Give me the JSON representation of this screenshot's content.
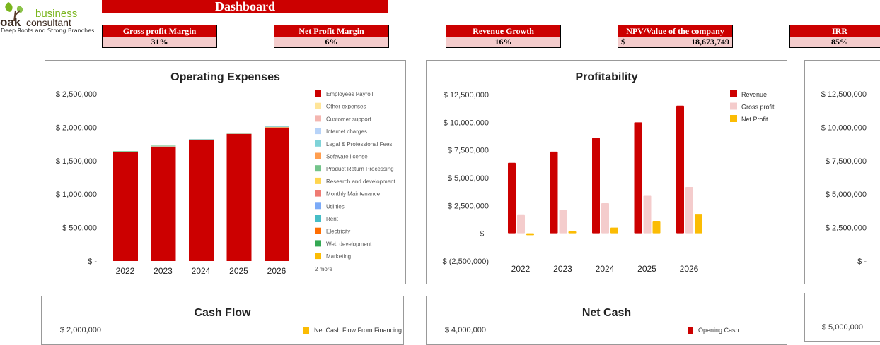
{
  "logo": {
    "brand_top": "business",
    "brand_main": "oak",
    "brand_sub": "consultant",
    "tagline": "Deep Roots and Strong Branches"
  },
  "header": {
    "title": "Dashboard"
  },
  "kpis": [
    {
      "label": "Gross profit Margin",
      "value": "31%"
    },
    {
      "label": "Net Profit Margin",
      "value": "6%"
    },
    {
      "label": "Revenue Growth",
      "value": "16%"
    },
    {
      "label": "NPV/Value of the company",
      "currency": "$",
      "value": "18,673,749"
    },
    {
      "label": "IRR",
      "value": "85%"
    }
  ],
  "colors": {
    "accent": "#cc0000",
    "kpi_value_bg": "#f4cccc"
  },
  "chart_data": [
    {
      "type": "bar",
      "stacked": true,
      "title": "Operating Expenses",
      "categories": [
        "2022",
        "2023",
        "2024",
        "2025",
        "2026"
      ],
      "ylim": [
        0,
        2500000
      ],
      "yticks": [
        "$ 2,500,000",
        "$ 2,000,000",
        "$ 1,500,000",
        "$ 1,000,000",
        "$ 500,000",
        "$ -"
      ],
      "legend_position": "right",
      "legend_more": "2 more",
      "series": [
        {
          "name": "Employees Payroll",
          "color": "#cc0000",
          "values": [
            1630000,
            1710000,
            1805000,
            1900000,
            1990000
          ]
        },
        {
          "name": "Other expenses",
          "color": "#ffe599",
          "values": [
            0,
            0,
            0,
            0,
            0
          ]
        },
        {
          "name": "Customer support",
          "color": "#f4b6b0",
          "values": [
            0,
            0,
            0,
            0,
            0
          ]
        },
        {
          "name": "Internet charges",
          "color": "#b7d3f8",
          "values": [
            0,
            0,
            0,
            0,
            0
          ]
        },
        {
          "name": "Legal & Professional Fees",
          "color": "#7fd3d8",
          "values": [
            6000,
            6000,
            6000,
            6000,
            6000
          ]
        },
        {
          "name": "Software license",
          "color": "#ff9e4f",
          "values": [
            0,
            4000,
            6000,
            8000,
            10000
          ]
        },
        {
          "name": "Product Return Processing",
          "color": "#73c48a",
          "values": [
            8000,
            6000,
            0,
            0,
            0
          ]
        },
        {
          "name": "Research and development",
          "color": "#ffd54f",
          "values": [
            0,
            0,
            0,
            0,
            0
          ]
        },
        {
          "name": "Monthly Maintenance",
          "color": "#ef7b73",
          "values": [
            0,
            0,
            0,
            0,
            0
          ]
        },
        {
          "name": "Utilities",
          "color": "#7baaf7",
          "values": [
            0,
            0,
            0,
            0,
            0
          ]
        },
        {
          "name": "Rent",
          "color": "#46bdc6",
          "values": [
            0,
            0,
            5000,
            5000,
            6000
          ]
        },
        {
          "name": "Electricity",
          "color": "#ff6d01",
          "values": [
            0,
            0,
            0,
            0,
            0
          ]
        },
        {
          "name": "Web development",
          "color": "#34a853",
          "values": [
            0,
            0,
            0,
            0,
            0
          ]
        },
        {
          "name": "Marketing",
          "color": "#fbbc04",
          "values": [
            0,
            0,
            0,
            0,
            0
          ]
        }
      ]
    },
    {
      "type": "bar",
      "title": "Profitability",
      "categories": [
        "2022",
        "2023",
        "2024",
        "2025",
        "2026"
      ],
      "ylim": [
        -2500000,
        12500000
      ],
      "yticks": [
        "$ 12,500,000",
        "$ 10,000,000",
        "$ 7,500,000",
        "$ 5,000,000",
        "$ 2,500,000",
        "$ -",
        "$ (2,500,000)"
      ],
      "legend_position": "right",
      "series": [
        {
          "name": "Revenue",
          "color": "#cc0000",
          "values": [
            6350000,
            7360000,
            8590000,
            10000000,
            11500000
          ]
        },
        {
          "name": "Gross profit",
          "color": "#f4cccc",
          "values": [
            1650000,
            2110000,
            2710000,
            3380000,
            4170000
          ]
        },
        {
          "name": "Net Profit",
          "color": "#fbbc04",
          "values": [
            -170000,
            170000,
            510000,
            1120000,
            1690000
          ]
        }
      ]
    },
    {
      "type": "bar",
      "title": "",
      "yticks": [
        "$ 12,500,000",
        "$ 10,000,000",
        "$ 7,500,000",
        "$ 5,000,000",
        "$ 2,500,000",
        "$ -"
      ]
    },
    {
      "type": "bar",
      "title": "Cash Flow",
      "yticks": [
        "$ 2,000,000"
      ],
      "series": [
        {
          "name": "Net Cash Flow From Financing Activities",
          "color": "#fbbc04"
        }
      ]
    },
    {
      "type": "bar",
      "title": "Net Cash",
      "yticks": [
        "$ 4,000,000"
      ],
      "series": [
        {
          "name": "Opening Cash",
          "color": "#cc0000"
        }
      ]
    },
    {
      "type": "bar",
      "title": "",
      "yticks": [
        "$ 5,000,000"
      ]
    }
  ]
}
